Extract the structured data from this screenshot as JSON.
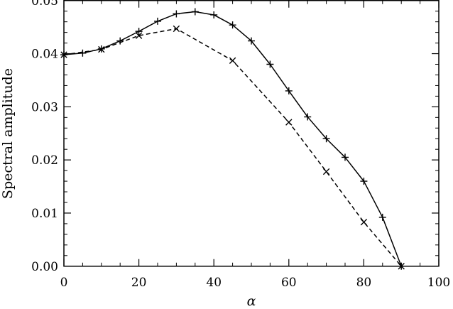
{
  "chart_data": {
    "type": "line",
    "xlabel": "α",
    "ylabel": "Spectral amplitude",
    "xlim": [
      0,
      100
    ],
    "ylim": [
      0,
      0.05
    ],
    "x_ticks": [
      "0",
      "20",
      "40",
      "60",
      "80",
      "100"
    ],
    "y_ticks": [
      "0.00",
      "0.01",
      "0.02",
      "0.03",
      "0.04",
      "0.05"
    ],
    "grid": false,
    "legend": "none",
    "series": [
      {
        "line_style": "solid",
        "marker": "plus",
        "color": "#000000",
        "points": [
          [
            0,
            0.0398
          ],
          [
            5,
            0.0401
          ],
          [
            10,
            0.0409
          ],
          [
            15,
            0.0424
          ],
          [
            20,
            0.0442
          ],
          [
            25,
            0.0461
          ],
          [
            30,
            0.0475
          ],
          [
            35,
            0.0479
          ],
          [
            40,
            0.0473
          ],
          [
            45,
            0.0454
          ],
          [
            50,
            0.0424
          ],
          [
            55,
            0.038
          ],
          [
            60,
            0.033
          ],
          [
            65,
            0.0281
          ],
          [
            70,
            0.024
          ],
          [
            75,
            0.0205
          ],
          [
            80,
            0.016
          ],
          [
            85,
            0.0092
          ],
          [
            90,
            0.0
          ]
        ]
      },
      {
        "line_style": "dashed",
        "marker": "x",
        "color": "#000000",
        "points": [
          [
            0,
            0.0398
          ],
          [
            10,
            0.0408
          ],
          [
            20,
            0.0434
          ],
          [
            30,
            0.0447
          ],
          [
            45,
            0.0387
          ],
          [
            60,
            0.0271
          ],
          [
            70,
            0.0178
          ],
          [
            80,
            0.0083
          ],
          [
            90,
            0.0
          ]
        ]
      }
    ]
  }
}
